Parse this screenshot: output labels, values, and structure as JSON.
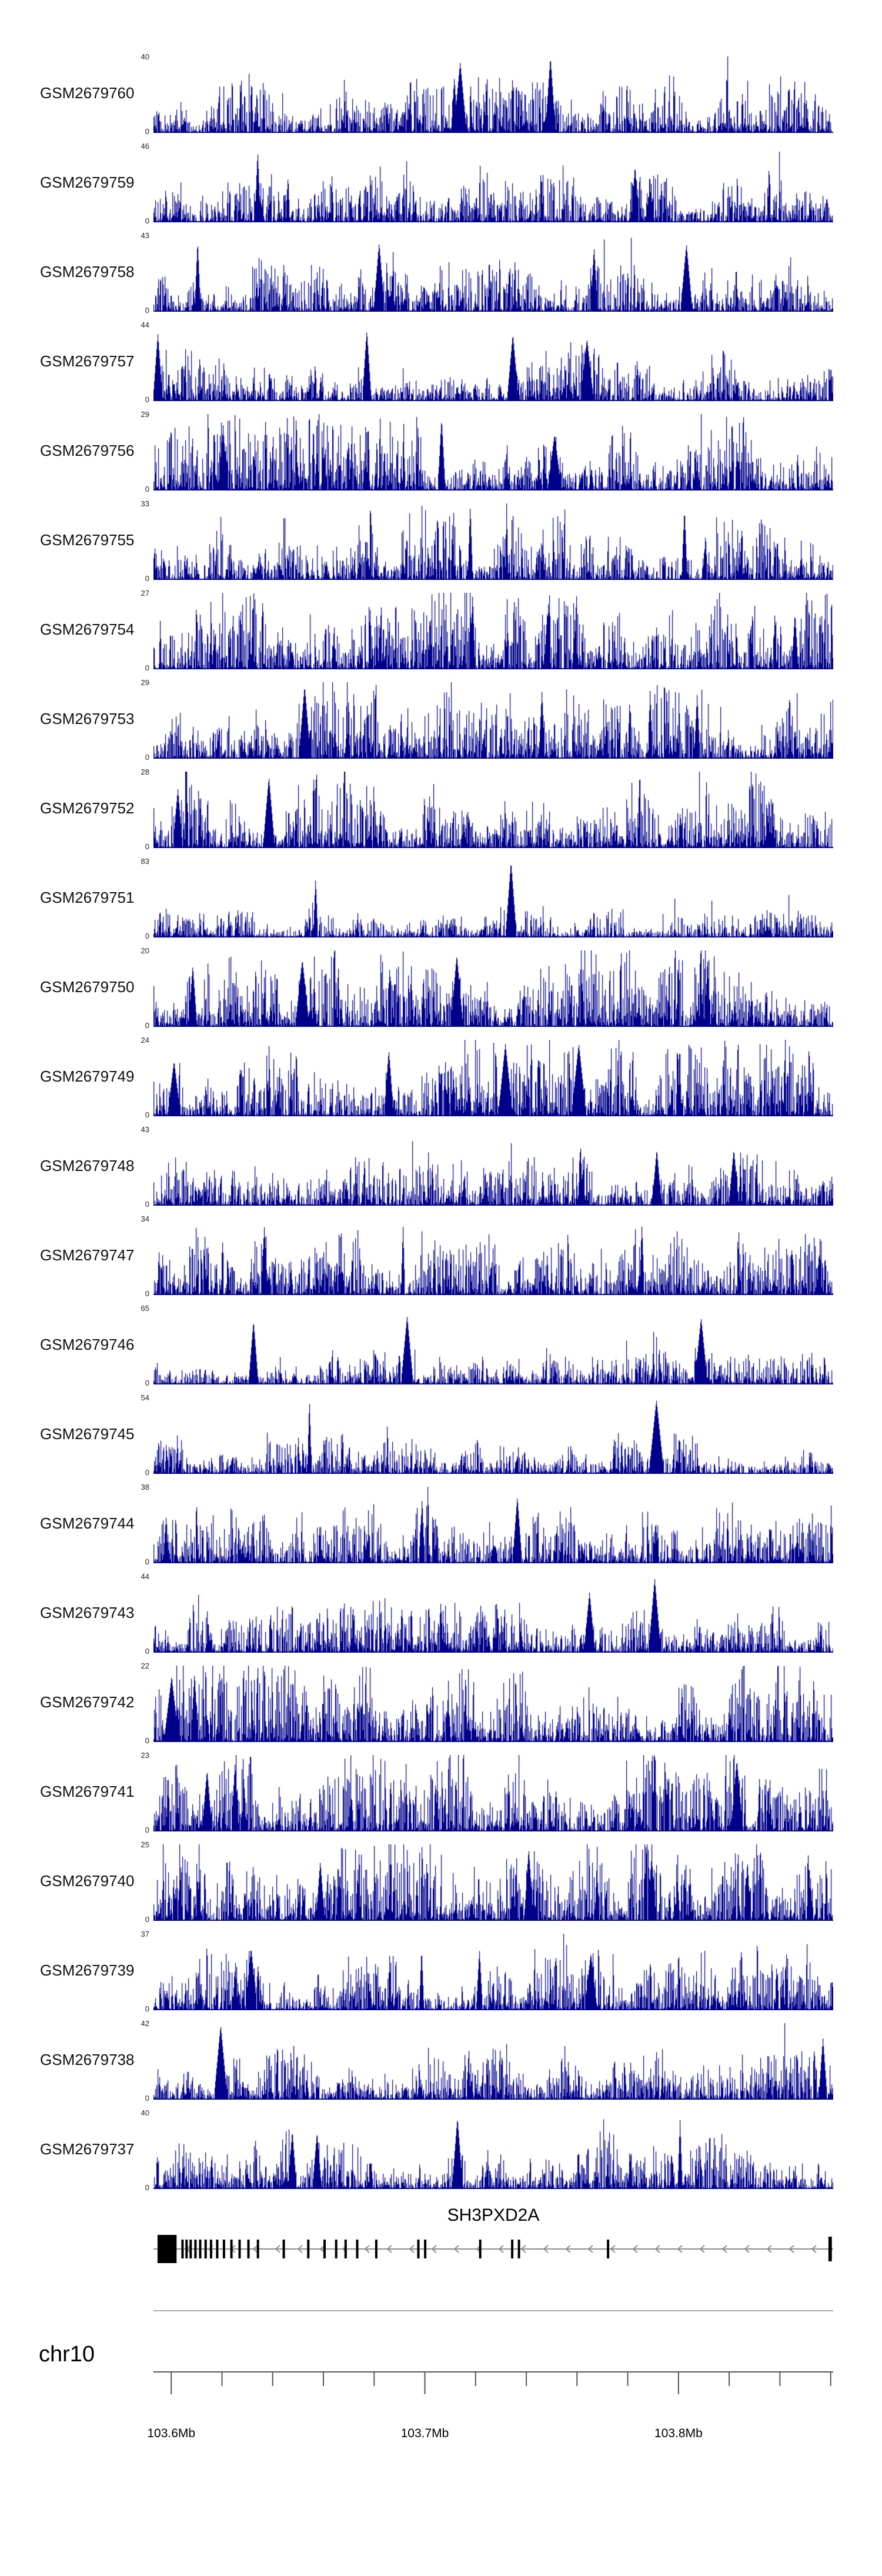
{
  "figure": {
    "background": "#ffffff"
  },
  "chart_data": {
    "type": "area",
    "description": "Genome-browser read coverage tracks (24 GEO samples) over the SH3PXD2A locus on chromosome 10",
    "signal_color": "#00008B",
    "x_axis": {
      "chromosome_label": "chr10",
      "unit": "Mb",
      "start_mb": 103.593,
      "end_mb": 103.861,
      "major_ticks_mb": [
        103.6,
        103.7,
        103.8
      ],
      "major_tick_labels": [
        "103.6Mb",
        "103.7Mb",
        "103.8Mb"
      ],
      "minor_tick_start_mb": 103.6,
      "minor_tick_interval_mb": 0.02,
      "minor_tick_count": 14
    },
    "tracks": [
      {
        "name": "GSM2679760",
        "ymax": 40,
        "ymin": 0
      },
      {
        "name": "GSM2679759",
        "ymax": 46,
        "ymin": 0
      },
      {
        "name": "GSM2679758",
        "ymax": 43,
        "ymin": 0
      },
      {
        "name": "GSM2679757",
        "ymax": 44,
        "ymin": 0
      },
      {
        "name": "GSM2679756",
        "ymax": 29,
        "ymin": 0
      },
      {
        "name": "GSM2679755",
        "ymax": 33,
        "ymin": 0
      },
      {
        "name": "GSM2679754",
        "ymax": 27,
        "ymin": 0
      },
      {
        "name": "GSM2679753",
        "ymax": 29,
        "ymin": 0
      },
      {
        "name": "GSM2679752",
        "ymax": 28,
        "ymin": 0
      },
      {
        "name": "GSM2679751",
        "ymax": 83,
        "ymin": 0
      },
      {
        "name": "GSM2679750",
        "ymax": 20,
        "ymin": 0
      },
      {
        "name": "GSM2679749",
        "ymax": 24,
        "ymin": 0
      },
      {
        "name": "GSM2679748",
        "ymax": 43,
        "ymin": 0
      },
      {
        "name": "GSM2679747",
        "ymax": 34,
        "ymin": 0
      },
      {
        "name": "GSM2679746",
        "ymax": 65,
        "ymin": 0
      },
      {
        "name": "GSM2679745",
        "ymax": 54,
        "ymin": 0
      },
      {
        "name": "GSM2679744",
        "ymax": 38,
        "ymin": 0
      },
      {
        "name": "GSM2679743",
        "ymax": 44,
        "ymin": 0
      },
      {
        "name": "GSM2679742",
        "ymax": 22,
        "ymin": 0
      },
      {
        "name": "GSM2679741",
        "ymax": 23,
        "ymin": 0
      },
      {
        "name": "GSM2679740",
        "ymax": 25,
        "ymin": 0
      },
      {
        "name": "GSM2679739",
        "ymax": 37,
        "ymin": 0
      },
      {
        "name": "GSM2679738",
        "ymax": 42,
        "ymin": 0
      },
      {
        "name": "GSM2679737",
        "ymax": 40,
        "ymin": 0
      }
    ],
    "gene_track": {
      "title": "SH3PXD2A",
      "strand": "-",
      "line_color": "#8c8c8c",
      "exon_color": "#000000",
      "exons": [
        {
          "x": 0.006,
          "w": 0.028,
          "h": "tall"
        },
        {
          "x": 0.041,
          "w": 0.0035,
          "h": "normal"
        },
        {
          "x": 0.047,
          "w": 0.0035,
          "h": "normal"
        },
        {
          "x": 0.053,
          "w": 0.0035,
          "h": "normal"
        },
        {
          "x": 0.06,
          "w": 0.0035,
          "h": "normal"
        },
        {
          "x": 0.067,
          "w": 0.0035,
          "h": "normal"
        },
        {
          "x": 0.075,
          "w": 0.0035,
          "h": "normal"
        },
        {
          "x": 0.083,
          "w": 0.0035,
          "h": "normal"
        },
        {
          "x": 0.092,
          "w": 0.0035,
          "h": "normal"
        },
        {
          "x": 0.102,
          "w": 0.0035,
          "h": "normal"
        },
        {
          "x": 0.113,
          "w": 0.0035,
          "h": "normal"
        },
        {
          "x": 0.125,
          "w": 0.0035,
          "h": "normal"
        },
        {
          "x": 0.138,
          "w": 0.0035,
          "h": "normal"
        },
        {
          "x": 0.152,
          "w": 0.0035,
          "h": "normal"
        },
        {
          "x": 0.19,
          "w": 0.0035,
          "h": "normal"
        },
        {
          "x": 0.226,
          "w": 0.0035,
          "h": "normal"
        },
        {
          "x": 0.25,
          "w": 0.0035,
          "h": "normal"
        },
        {
          "x": 0.267,
          "w": 0.0035,
          "h": "normal"
        },
        {
          "x": 0.281,
          "w": 0.0035,
          "h": "normal"
        },
        {
          "x": 0.298,
          "w": 0.0035,
          "h": "normal"
        },
        {
          "x": 0.326,
          "w": 0.0035,
          "h": "normal"
        },
        {
          "x": 0.388,
          "w": 0.0035,
          "h": "normal"
        },
        {
          "x": 0.398,
          "w": 0.0035,
          "h": "normal"
        },
        {
          "x": 0.479,
          "w": 0.0035,
          "h": "normal"
        },
        {
          "x": 0.526,
          "w": 0.0035,
          "h": "normal"
        },
        {
          "x": 0.536,
          "w": 0.0035,
          "h": "normal"
        },
        {
          "x": 0.667,
          "w": 0.0035,
          "h": "normal"
        },
        {
          "x": 0.993,
          "w": 0.005,
          "h": "end"
        }
      ]
    }
  }
}
